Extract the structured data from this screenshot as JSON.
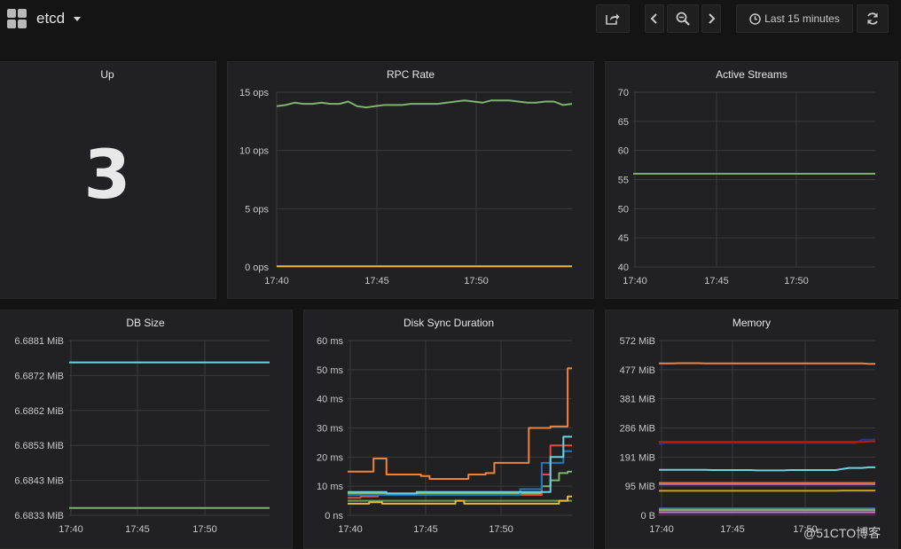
{
  "dashboard": {
    "title": "etcd"
  },
  "toolbar": {
    "share_icon": "share-icon",
    "back_icon": "chevron-left-icon",
    "zoom_icon": "zoom-out-icon",
    "forward_icon": "chevron-right-icon",
    "clock_icon": "clock-icon",
    "time_range_label": "Last 15 minutes",
    "refresh_icon": "refresh-icon"
  },
  "panels": {
    "up": {
      "title": "Up",
      "value": "3"
    },
    "rpc": {
      "title": "RPC Rate"
    },
    "streams": {
      "title": "Active Streams"
    },
    "dbsize": {
      "title": "DB Size"
    },
    "disksync": {
      "title": "Disk Sync Duration"
    },
    "memory": {
      "title": "Memory"
    }
  },
  "watermark": "@51CTO博客",
  "chart_data": [
    {
      "id": "rpc",
      "type": "line",
      "title": "RPC Rate",
      "ylim": [
        0,
        15
      ],
      "yticks": [
        "0 ops",
        "5 ops",
        "10 ops",
        "15 ops"
      ],
      "xticks": [
        "17:40",
        "17:45",
        "17:50"
      ],
      "grid": true,
      "series": [
        {
          "color": "#7eb26d",
          "values": [
            13.8,
            13.9,
            14.1,
            14.0,
            14.0,
            14.1,
            14.0,
            14.0,
            14.2,
            13.8,
            13.7,
            13.8,
            13.9,
            13.9,
            13.9,
            14.0,
            14.0,
            14.0,
            14.0,
            14.1,
            14.2,
            14.3,
            14.2,
            14.1,
            14.3,
            14.3,
            14.3,
            14.2,
            14.1,
            14.1,
            14.2,
            14.2,
            13.9,
            14.0
          ]
        },
        {
          "color": "#eab839",
          "values": [
            0.05,
            0.05,
            0.05,
            0.05,
            0.05,
            0.05,
            0.05,
            0.05,
            0.05,
            0.05,
            0.05,
            0.05,
            0.05,
            0.05,
            0.05,
            0.05,
            0.05,
            0.05,
            0.05,
            0.05,
            0.05,
            0.05,
            0.05,
            0.05,
            0.05,
            0.05,
            0.05,
            0.05,
            0.05,
            0.05,
            0.05,
            0.05,
            0.05,
            0.05
          ]
        }
      ]
    },
    {
      "id": "streams",
      "type": "line",
      "title": "Active Streams",
      "ylim": [
        40,
        70
      ],
      "yticks": [
        "40",
        "45",
        "50",
        "55",
        "60",
        "65",
        "70"
      ],
      "xticks": [
        "17:40",
        "17:45",
        "17:50"
      ],
      "grid": true,
      "series": [
        {
          "color": "#7eb26d",
          "values": [
            56,
            56,
            56,
            56,
            56,
            56,
            56,
            56,
            56,
            56,
            56,
            56,
            56,
            56,
            56,
            56,
            56,
            56,
            56,
            56,
            56,
            56,
            56,
            56,
            56,
            56,
            56,
            56,
            56,
            56,
            56,
            56,
            56,
            56
          ]
        }
      ]
    },
    {
      "id": "dbsize",
      "type": "line",
      "title": "DB Size",
      "ylim": [
        6.6833,
        6.6881
      ],
      "yticks": [
        "6.6833 MiB",
        "6.6843 MiB",
        "6.6853 MiB",
        "6.6862 MiB",
        "6.6872 MiB",
        "6.6881 MiB"
      ],
      "xticks": [
        "17:40",
        "17:45",
        "17:50"
      ],
      "grid": true,
      "series": [
        {
          "color": "#6ed0e0",
          "values": [
            6.6875,
            6.6875,
            6.6875,
            6.6875,
            6.6875,
            6.6875,
            6.6875,
            6.6875,
            6.6875,
            6.6875,
            6.6875,
            6.6875,
            6.6875,
            6.6875,
            6.6875,
            6.6875,
            6.6875,
            6.6875,
            6.6875,
            6.6875,
            6.6875,
            6.6875,
            6.6875,
            6.6875,
            6.6875,
            6.6875,
            6.6875,
            6.6875,
            6.6875,
            6.6875,
            6.6875,
            6.6875,
            6.6875,
            6.6875
          ]
        },
        {
          "color": "#7eb26d",
          "values": [
            6.6835,
            6.6835,
            6.6835,
            6.6835,
            6.6835,
            6.6835,
            6.6835,
            6.6835,
            6.6835,
            6.6835,
            6.6835,
            6.6835,
            6.6835,
            6.6835,
            6.6835,
            6.6835,
            6.6835,
            6.6835,
            6.6835,
            6.6835,
            6.6835,
            6.6835,
            6.6835,
            6.6835,
            6.6835,
            6.6835,
            6.6835,
            6.6835,
            6.6835,
            6.6835,
            6.6835,
            6.6835,
            6.6835,
            6.6835
          ]
        }
      ]
    },
    {
      "id": "disksync",
      "type": "line",
      "step": true,
      "title": "Disk Sync Duration",
      "ylim": [
        0,
        60
      ],
      "yticks": [
        "0 ns",
        "10 ms",
        "20 ms",
        "30 ms",
        "40 ms",
        "50 ms",
        "60 ms"
      ],
      "xticks": [
        "17:40",
        "17:45",
        "17:50"
      ],
      "grid": true,
      "series": [
        {
          "color": "#ef843c",
          "values": [
            15,
            15,
            15,
            15,
            15,
            15,
            19.5,
            19.5,
            19.5,
            14,
            14,
            14,
            14,
            14,
            14,
            14,
            14,
            13.5,
            13.5,
            12.5,
            12.5,
            12.5,
            12.5,
            12.5,
            12.5,
            12.5,
            12.5,
            12.5,
            14,
            14,
            14,
            14,
            14.5,
            14.5,
            18,
            18,
            18,
            18,
            18,
            18,
            18,
            18,
            30,
            30,
            30,
            30,
            30,
            30.5,
            30.5,
            30.5,
            30.5,
            50.5,
            50.5
          ]
        },
        {
          "color": "#7eb26d",
          "values": [
            7.5,
            7.5,
            7.5,
            7.5,
            7.5,
            7.5,
            7.5,
            7.5,
            7.5,
            7.5,
            7.5,
            7.5,
            7.5,
            7.5,
            7.5,
            7.5,
            7.5,
            7.5,
            7.5,
            7.5,
            7.5,
            7.5,
            7.5,
            7.5,
            7.5,
            7.5,
            7.5,
            7.5,
            7.5,
            7.5,
            7.5,
            7.5,
            7.5,
            7.5,
            7.5,
            7.5,
            7.5,
            7.5,
            7.5,
            7.5,
            7.5,
            7.5,
            7.5,
            7.5,
            7.5,
            10,
            10,
            12,
            12,
            14.5,
            14.5,
            15,
            15
          ]
        },
        {
          "color": "#e24d42",
          "values": [
            6,
            6,
            6,
            6.5,
            6.5,
            6.5,
            6.5,
            7,
            7,
            7,
            7,
            7,
            7,
            7,
            7,
            7,
            7,
            7,
            7,
            7,
            7,
            7,
            7,
            7,
            7,
            7,
            7,
            7,
            7,
            7,
            7,
            7,
            7,
            7,
            7,
            7,
            7,
            7,
            7,
            7,
            7,
            7,
            7,
            7,
            7,
            14,
            14,
            24,
            24,
            24,
            24,
            24,
            24
          ]
        },
        {
          "color": "#1f78c1",
          "values": [
            7,
            7,
            7,
            7,
            7,
            7,
            7,
            7,
            7,
            7,
            7,
            7,
            7,
            7,
            7,
            7,
            7,
            7,
            7,
            7,
            7,
            7,
            7,
            7,
            7,
            7,
            7,
            7,
            7,
            7,
            7,
            7,
            7,
            7,
            7,
            7,
            7,
            7,
            7,
            7,
            9,
            9,
            9,
            9,
            9,
            18,
            18,
            18,
            18,
            18,
            22,
            22,
            22
          ]
        },
        {
          "color": "#6ed0e0",
          "values": [
            8,
            8,
            8,
            8,
            8,
            8,
            8,
            8,
            8,
            7.5,
            7.5,
            7.5,
            7.5,
            7.5,
            7.5,
            7.5,
            8,
            8,
            8,
            8,
            8,
            8,
            8,
            8,
            8,
            8,
            8,
            8,
            8,
            8,
            8,
            8,
            8,
            8,
            8,
            8,
            8,
            8,
            8,
            8,
            8,
            8,
            8,
            8,
            8,
            8,
            8,
            20,
            20,
            20,
            27,
            27,
            27
          ]
        },
        {
          "color": "#629e51",
          "values": [
            5,
            5,
            5,
            5,
            5,
            5,
            5,
            5,
            5,
            5,
            5,
            5,
            5,
            5,
            5,
            5,
            5,
            5,
            5,
            5,
            5,
            5,
            5,
            5,
            5,
            5,
            5,
            5,
            5,
            5,
            5,
            5,
            5,
            5,
            5,
            5,
            5,
            5,
            5,
            5,
            5,
            5,
            5,
            5,
            5,
            5,
            5,
            5,
            5,
            5,
            5,
            5,
            5
          ]
        },
        {
          "color": "#eab839",
          "values": [
            4,
            4,
            4,
            4,
            4,
            4.5,
            4.5,
            4.5,
            4,
            4,
            4,
            4,
            4,
            4,
            4,
            4,
            4,
            4,
            4,
            4,
            4,
            4,
            4,
            4,
            4,
            5,
            5,
            4,
            4,
            4,
            4,
            4,
            4,
            4,
            4,
            4,
            4,
            4,
            4,
            4,
            4,
            4,
            4,
            4,
            4,
            4,
            4,
            4,
            4,
            5,
            5,
            6.5,
            6.5
          ]
        }
      ]
    },
    {
      "id": "memory",
      "type": "line",
      "title": "Memory",
      "ylim": [
        0,
        572
      ],
      "yticks": [
        "0 B",
        "95 MiB",
        "191 MiB",
        "286 MiB",
        "381 MiB",
        "477 MiB",
        "572 MiB"
      ],
      "xticks": [
        "17:40",
        "17:45",
        "17:50"
      ],
      "grid": true,
      "series": [
        {
          "color": "#ef843c",
          "values": [
            497,
            497,
            497,
            498,
            498,
            498,
            498,
            497,
            497,
            497,
            497,
            497,
            497,
            497,
            497,
            497,
            497,
            497,
            497,
            497,
            497,
            497,
            497,
            497,
            497,
            497,
            497,
            497,
            497,
            497,
            497,
            497,
            496,
            496
          ]
        },
        {
          "color": "#1f3a93",
          "values": [
            233,
            237,
            237,
            237,
            237,
            237,
            237,
            237,
            237,
            237,
            237,
            237,
            237,
            237,
            237,
            237,
            237,
            237,
            237,
            237,
            237,
            237,
            237,
            237,
            237,
            237,
            237,
            237,
            237,
            237,
            237,
            248,
            248,
            248
          ]
        },
        {
          "color": "#bf1b00",
          "values": [
            240,
            240,
            240,
            240,
            240,
            240,
            240,
            240,
            240,
            240,
            240,
            240,
            240,
            240,
            240,
            240,
            240,
            240,
            240,
            240,
            240,
            240,
            240,
            240,
            240,
            240,
            240,
            240,
            240,
            240,
            240,
            240,
            242,
            242
          ]
        },
        {
          "color": "#6ed0e0",
          "values": [
            149,
            149,
            149,
            149,
            149,
            149,
            149,
            149,
            148,
            148,
            148,
            148,
            148,
            148,
            148,
            147,
            147,
            147,
            147,
            147,
            148,
            148,
            148,
            148,
            148,
            148,
            148,
            148,
            152,
            155,
            155,
            155,
            157,
            157
          ]
        },
        {
          "color": "#e0752d",
          "values": [
            106,
            106,
            106,
            106,
            106,
            106,
            106,
            106,
            106,
            106,
            106,
            106,
            106,
            106,
            106,
            106,
            106,
            106,
            106,
            106,
            106,
            106,
            106,
            106,
            106,
            106,
            106,
            106,
            106,
            106,
            106,
            106,
            106,
            106
          ]
        },
        {
          "color": "#a473c7",
          "values": [
            102,
            102,
            102,
            102,
            102,
            102,
            102,
            102,
            102,
            102,
            102,
            102,
            102,
            102,
            102,
            102,
            102,
            102,
            102,
            102,
            102,
            102,
            102,
            102,
            102,
            102,
            102,
            102,
            102,
            102,
            102,
            102,
            102,
            102
          ]
        },
        {
          "color": "#cca300",
          "values": [
            80,
            80,
            80,
            80,
            80,
            80,
            80,
            80,
            80,
            80,
            80,
            80,
            80,
            80,
            80,
            80,
            80,
            80,
            80,
            80,
            80,
            80,
            80,
            80,
            80,
            80,
            80,
            80,
            81,
            81,
            81,
            81,
            81,
            81
          ]
        },
        {
          "color": "#447ebc",
          "values": [
            22,
            22,
            22,
            22,
            22,
            22,
            22,
            22,
            22,
            22,
            22,
            22,
            22,
            22,
            22,
            22,
            22,
            22,
            22,
            22,
            22,
            22,
            22,
            22,
            22,
            22,
            22,
            22,
            22,
            22,
            22,
            22,
            22,
            22
          ]
        },
        {
          "color": "#7eb26d",
          "values": [
            17,
            17,
            17,
            17,
            17,
            17,
            17,
            17,
            17,
            17,
            17,
            17,
            17,
            17,
            17,
            17,
            17,
            17,
            17,
            17,
            17,
            17,
            17,
            17,
            17,
            17,
            17,
            17,
            17,
            17,
            17,
            17,
            17,
            17
          ]
        },
        {
          "color": "#d683ce",
          "values": [
            10,
            10,
            10,
            10,
            10,
            10,
            10,
            10,
            10,
            10,
            10,
            10,
            10,
            10,
            10,
            10,
            10,
            10,
            10,
            10,
            10,
            10,
            10,
            10,
            10,
            10,
            10,
            10,
            10,
            10,
            10,
            10,
            10,
            10
          ]
        },
        {
          "color": "#6d1f62",
          "values": [
            5,
            5,
            5,
            5,
            5,
            5,
            5,
            5,
            5,
            5,
            5,
            5,
            5,
            5,
            5,
            5,
            5,
            5,
            5,
            5,
            5,
            5,
            5,
            5,
            5,
            5,
            5,
            5,
            5,
            5,
            5,
            5,
            5,
            5
          ]
        }
      ]
    }
  ]
}
